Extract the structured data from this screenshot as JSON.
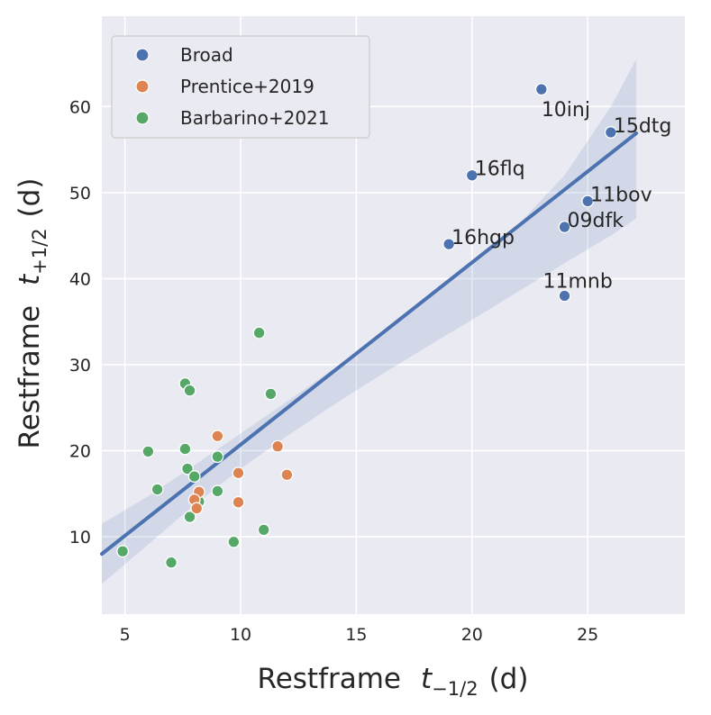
{
  "chart_data": {
    "type": "scatter",
    "xlabel_main": "Restframe",
    "xlabel_t": "t",
    "xlabel_sub": "−1/2",
    "xlabel_unit": "(d)",
    "ylabel_main": "Restframe",
    "ylabel_t": "t",
    "ylabel_sub": "+1/2",
    "ylabel_unit": "(d)",
    "xlim": [
      4,
      29.2
    ],
    "ylim": [
      1,
      70.5
    ],
    "xticks": [
      5,
      10,
      15,
      20,
      25
    ],
    "yticks": [
      10,
      20,
      30,
      40,
      50,
      60
    ],
    "grid": true,
    "legend_position": "top-left",
    "colors": {
      "background": "#eaeaf2",
      "grid": "#ffffff",
      "broad": "#4c72b0",
      "prentice": "#dd8452",
      "barbarino": "#55a868",
      "fit": "#4c72b0",
      "band": "#4c72b0"
    },
    "series": [
      {
        "name": "Broad",
        "key": "broad",
        "points": [
          {
            "x": 23.0,
            "y": 62.0,
            "label": "10inj"
          },
          {
            "x": 26.0,
            "y": 57.0,
            "label": "15dtg"
          },
          {
            "x": 20.0,
            "y": 52.0,
            "label": "16flq"
          },
          {
            "x": 25.0,
            "y": 49.0,
            "label": "11bov"
          },
          {
            "x": 24.0,
            "y": 46.0,
            "label": "09dfk"
          },
          {
            "x": 19.0,
            "y": 44.0,
            "label": "16hgp"
          },
          {
            "x": 24.0,
            "y": 38.0,
            "label": "11mnb"
          }
        ]
      },
      {
        "name": "Prentice+2019",
        "key": "prentice",
        "points": [
          {
            "x": 9.0,
            "y": 21.7
          },
          {
            "x": 11.6,
            "y": 20.5
          },
          {
            "x": 9.9,
            "y": 17.4
          },
          {
            "x": 12.0,
            "y": 17.2
          },
          {
            "x": 8.2,
            "y": 15.2
          },
          {
            "x": 8.0,
            "y": 14.3
          },
          {
            "x": 9.9,
            "y": 14.0
          },
          {
            "x": 8.1,
            "y": 13.3
          }
        ]
      },
      {
        "name": "Barbarino+2021",
        "key": "barbarino",
        "points": [
          {
            "x": 10.8,
            "y": 33.7
          },
          {
            "x": 7.6,
            "y": 27.8
          },
          {
            "x": 7.8,
            "y": 27.0
          },
          {
            "x": 11.3,
            "y": 26.6
          },
          {
            "x": 6.0,
            "y": 19.9
          },
          {
            "x": 7.6,
            "y": 20.2
          },
          {
            "x": 9.0,
            "y": 19.3
          },
          {
            "x": 7.7,
            "y": 17.9
          },
          {
            "x": 8.0,
            "y": 17.0
          },
          {
            "x": 6.4,
            "y": 15.5
          },
          {
            "x": 9.0,
            "y": 15.3
          },
          {
            "x": 8.2,
            "y": 14.1
          },
          {
            "x": 7.8,
            "y": 12.3
          },
          {
            "x": 11.0,
            "y": 10.8
          },
          {
            "x": 9.7,
            "y": 9.4
          },
          {
            "x": 4.9,
            "y": 8.3
          },
          {
            "x": 7.0,
            "y": 7.0
          }
        ]
      }
    ],
    "fit_line": {
      "x": [
        4,
        27.1
      ],
      "y": [
        8.0,
        56.9
      ]
    },
    "confidence_band": {
      "x": [
        4,
        6,
        8,
        10,
        12,
        14,
        16,
        18,
        20,
        22,
        24,
        26,
        27.1
      ],
      "upper": [
        11.5,
        14.7,
        18.3,
        22.0,
        25.7,
        29.5,
        33.4,
        37.5,
        41.8,
        46.3,
        52.0,
        60.0,
        65.5
      ],
      "lower": [
        4.5,
        9.1,
        13.7,
        17.9,
        21.7,
        25.3,
        28.7,
        32.0,
        35.2,
        38.5,
        41.8,
        45.0,
        47.0
      ]
    }
  }
}
